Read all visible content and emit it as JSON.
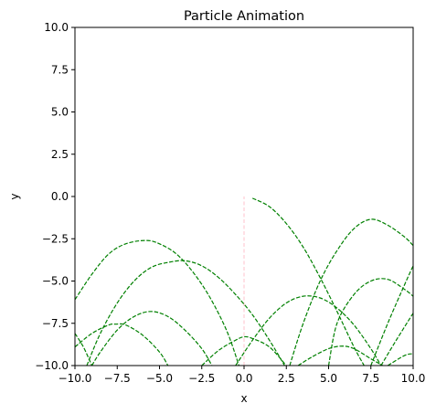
{
  "chart_data": {
    "type": "line",
    "title": "Particle Animation",
    "xlabel": "x",
    "ylabel": "y",
    "xlim": [
      -10,
      10
    ],
    "ylim": [
      -10,
      10
    ],
    "grid": false,
    "xticks": [
      "−10.0",
      "−7.5",
      "−5.0",
      "−2.5",
      "0.0",
      "2.5",
      "5.0",
      "7.5",
      "10.0"
    ],
    "yticks": [
      "−10.0",
      "−7.5",
      "−5.0",
      "−2.5",
      "0.0",
      "2.5",
      "5.0",
      "7.5",
      "10.0"
    ],
    "colors": {
      "trajectory": "#008000",
      "launch": "#ffc0cb"
    },
    "series": [
      {
        "style": "launch",
        "x": [
          0,
          0
        ],
        "y": [
          -10,
          0
        ]
      },
      {
        "style": "trajectory",
        "points": [
          [
            0.5,
            -0.1
          ],
          [
            1.5,
            -0.6
          ],
          [
            2.5,
            -1.6
          ],
          [
            3.5,
            -3.0
          ],
          [
            4.5,
            -4.8
          ],
          [
            5.5,
            -6.8
          ],
          [
            6.5,
            -8.9
          ],
          [
            7.1,
            -10
          ]
        ]
      },
      {
        "style": "trajectory",
        "points": [
          [
            2.7,
            -10
          ],
          [
            3.5,
            -7.5
          ],
          [
            4.5,
            -5.0
          ],
          [
            5.5,
            -3.2
          ],
          [
            6.5,
            -1.9
          ],
          [
            7.5,
            -1.35
          ],
          [
            8.5,
            -1.7
          ],
          [
            9.5,
            -2.4
          ],
          [
            10,
            -2.9
          ]
        ]
      },
      {
        "style": "trajectory",
        "points": [
          [
            -10,
            -6.1
          ],
          [
            -9,
            -4.6
          ],
          [
            -8,
            -3.4
          ],
          [
            -7,
            -2.8
          ],
          [
            -5.8,
            -2.6
          ],
          [
            -5,
            -2.8
          ],
          [
            -4,
            -3.4
          ],
          [
            -3,
            -4.5
          ],
          [
            -2,
            -6.0
          ],
          [
            -1,
            -8.0
          ],
          [
            -0.3,
            -10
          ]
        ]
      },
      {
        "style": "trajectory",
        "points": [
          [
            -9.3,
            -10
          ],
          [
            -8.5,
            -8.1
          ],
          [
            -7.5,
            -6.3
          ],
          [
            -6.5,
            -5.0
          ],
          [
            -5.5,
            -4.2
          ],
          [
            -4.5,
            -3.9
          ],
          [
            -3.5,
            -3.8
          ],
          [
            -2.5,
            -4.1
          ],
          [
            -1.5,
            -4.8
          ],
          [
            -0.5,
            -5.8
          ],
          [
            0.5,
            -7.0
          ],
          [
            1.5,
            -8.5
          ],
          [
            2.4,
            -10
          ]
        ]
      },
      {
        "style": "trajectory",
        "points": [
          [
            -9,
            -10
          ],
          [
            -8.5,
            -9.2
          ],
          [
            -7.5,
            -7.9
          ],
          [
            -6.5,
            -7.1
          ],
          [
            -5.5,
            -6.8
          ],
          [
            -4.5,
            -7.1
          ],
          [
            -3.5,
            -7.9
          ],
          [
            -2.5,
            -9.0
          ],
          [
            -1.9,
            -10
          ]
        ]
      },
      {
        "style": "trajectory",
        "points": [
          [
            -10,
            -8.9
          ],
          [
            -9,
            -8.1
          ],
          [
            -8,
            -7.6
          ],
          [
            -7.6,
            -7.55
          ],
          [
            -7,
            -7.6
          ],
          [
            -6,
            -8.2
          ],
          [
            -5,
            -9.2
          ],
          [
            -4.5,
            -10
          ]
        ]
      },
      {
        "style": "trajectory",
        "points": [
          [
            -10,
            -8.1
          ],
          [
            -9.5,
            -8.9
          ],
          [
            -9,
            -10
          ]
        ]
      },
      {
        "style": "trajectory",
        "points": [
          [
            -2.5,
            -10
          ],
          [
            -1.5,
            -9.1
          ],
          [
            -0.5,
            -8.5
          ],
          [
            0,
            -8.3
          ],
          [
            0.5,
            -8.4
          ],
          [
            1.5,
            -8.9
          ],
          [
            2.5,
            -10
          ]
        ]
      },
      {
        "style": "trajectory",
        "points": [
          [
            -0.5,
            -10
          ],
          [
            0.5,
            -8.5
          ],
          [
            1.5,
            -7.2
          ],
          [
            2.5,
            -6.3
          ],
          [
            3.5,
            -5.9
          ],
          [
            4.5,
            -6.0
          ],
          [
            5.5,
            -6.6
          ],
          [
            6.5,
            -7.6
          ],
          [
            7.5,
            -9.0
          ],
          [
            8.1,
            -10
          ]
        ]
      },
      {
        "style": "trajectory",
        "points": [
          [
            3.2,
            -10
          ],
          [
            4,
            -9.5
          ],
          [
            5,
            -9.0
          ],
          [
            5.8,
            -8.85
          ],
          [
            6.5,
            -9.0
          ],
          [
            7.5,
            -9.6
          ],
          [
            8.2,
            -10
          ]
        ]
      },
      {
        "style": "trajectory",
        "points": [
          [
            5,
            -10
          ],
          [
            5.5,
            -7.5
          ],
          [
            6.5,
            -5.8
          ],
          [
            7.5,
            -5.0
          ],
          [
            8.5,
            -4.9
          ],
          [
            9.5,
            -5.5
          ],
          [
            10,
            -5.9
          ]
        ]
      },
      {
        "style": "trajectory",
        "points": [
          [
            7.5,
            -10
          ],
          [
            8.5,
            -7.5
          ],
          [
            9.5,
            -5.2
          ],
          [
            10,
            -4.1
          ]
        ]
      },
      {
        "style": "trajectory",
        "points": [
          [
            8.1,
            -10
          ],
          [
            9,
            -8.5
          ],
          [
            10,
            -6.9
          ]
        ]
      },
      {
        "style": "trajectory",
        "points": [
          [
            8.5,
            -10
          ],
          [
            9.5,
            -9.4
          ],
          [
            10,
            -9.3
          ]
        ]
      }
    ]
  }
}
